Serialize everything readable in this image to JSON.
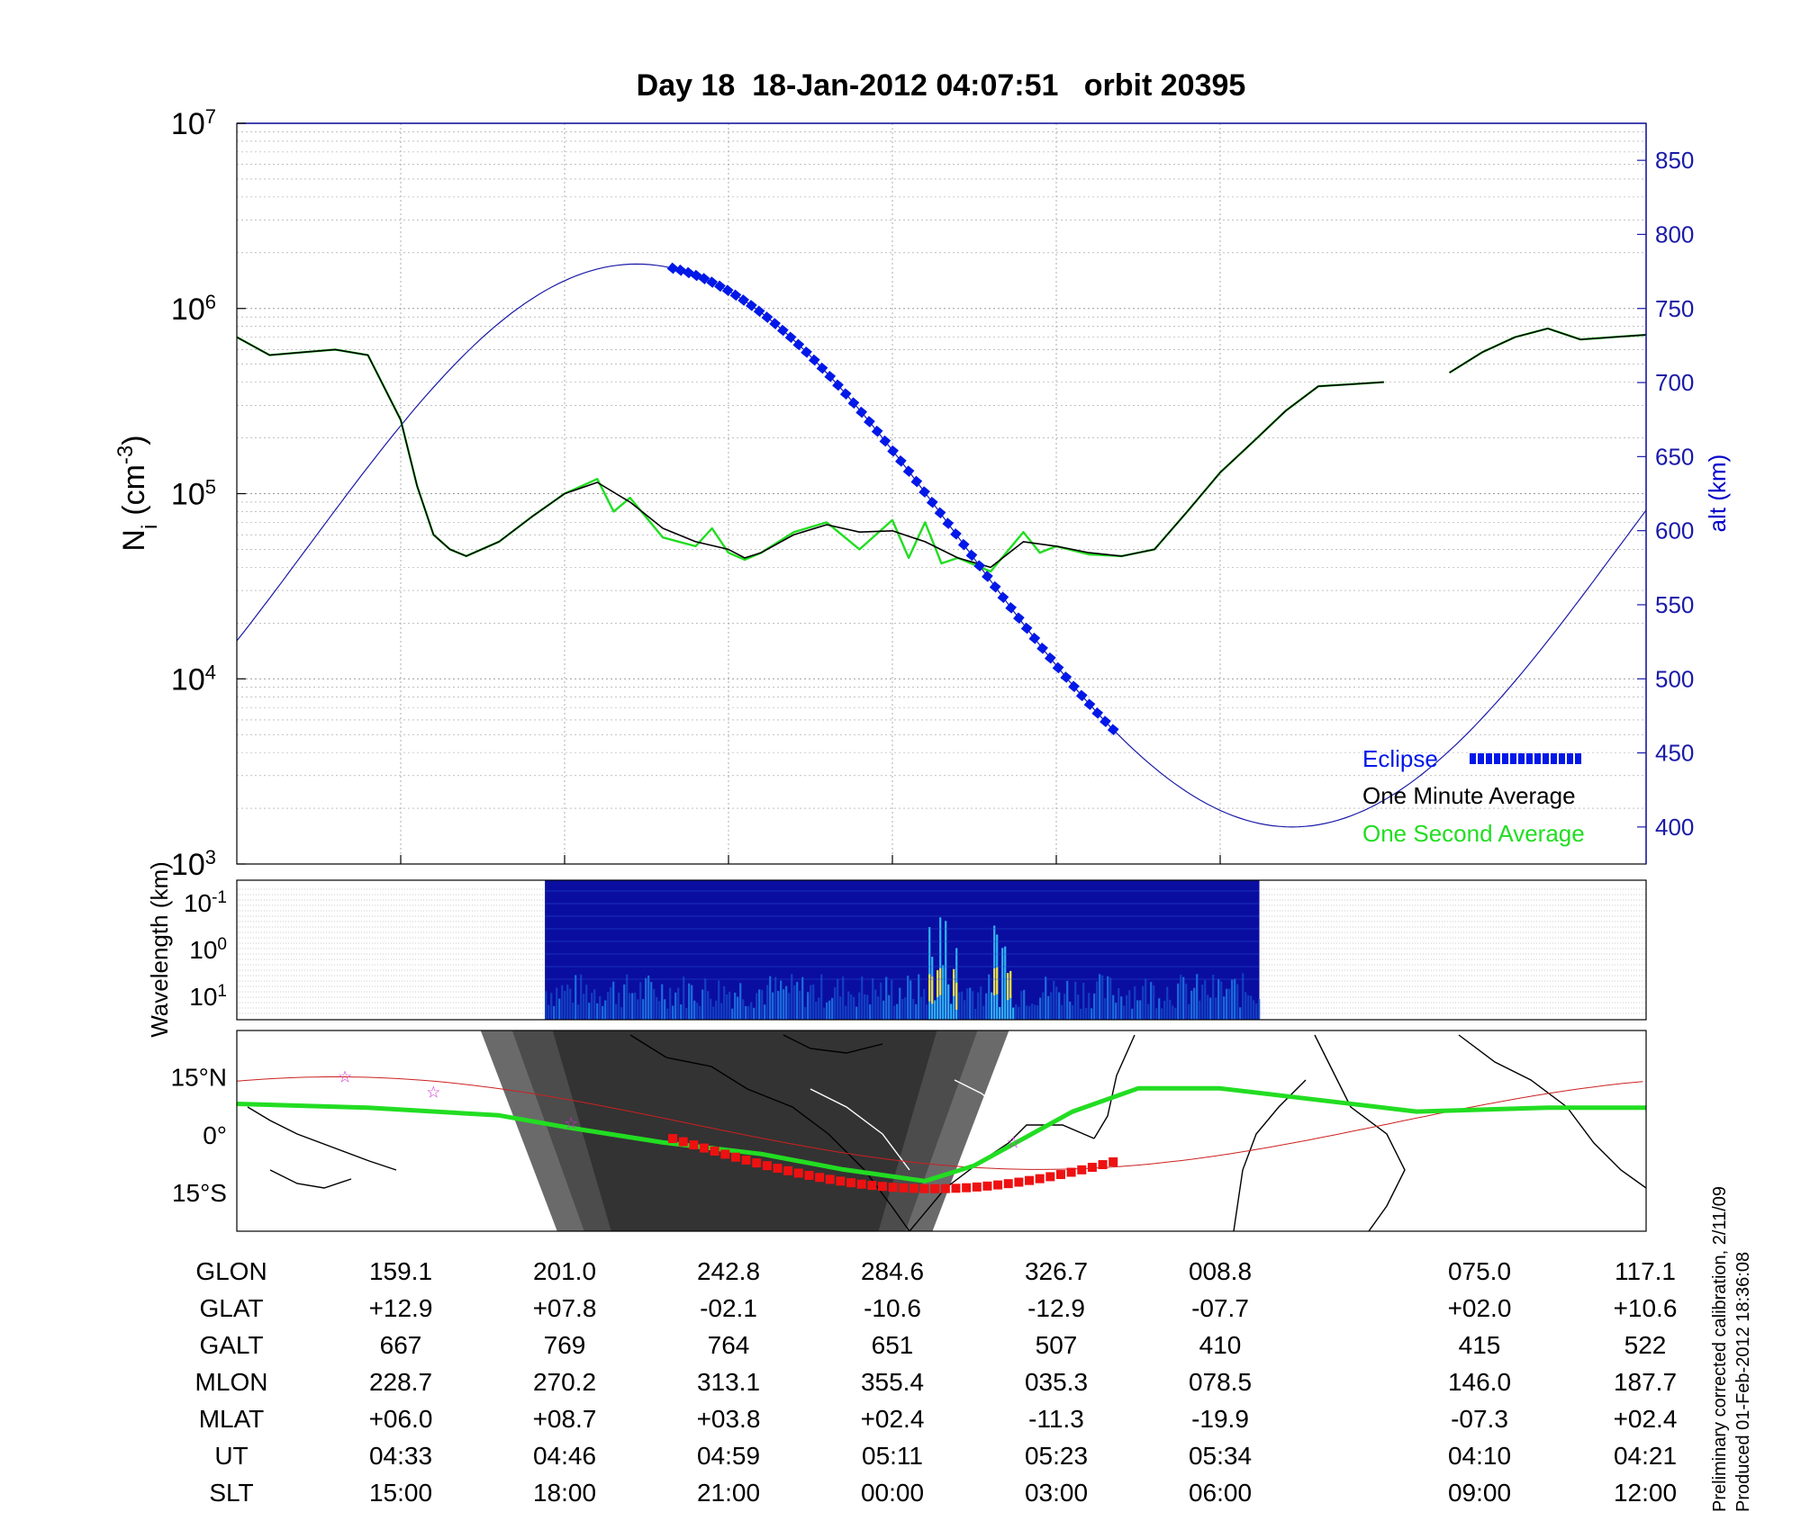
{
  "header": {
    "title": "Day 18  18-Jan-2012 04:07:51   orbit 20395"
  },
  "colors": {
    "one_minute": "#000000",
    "one_second": "#22dd22",
    "altitude": "#1a1aa8",
    "eclipse": "#0018e8",
    "track": "#22dd22",
    "footprint": "#ee1111",
    "grid": "#9a9a9a"
  },
  "chart_data": [
    {
      "type": "line",
      "panel": "ion density",
      "title": "Day 18  18-Jan-2012 04:07:51   orbit 20395",
      "ylabel": "N_i (cm^-3)",
      "ylabel_display": "N",
      "ylabel_sub": "i",
      "ylabel_unit": "(cm",
      "ylabel_exp": "-3",
      "ylabel_close": ")",
      "yscale": "log",
      "ylim": [
        1000,
        10000000
      ],
      "ytick_exponents": [
        "3",
        "4",
        "5",
        "6",
        "7"
      ],
      "ytick_base": "10",
      "y2label": "alt (km)",
      "y2lim": [
        375,
        875
      ],
      "y2ticks": [
        400,
        450,
        500,
        550,
        600,
        650,
        700,
        750,
        800,
        850
      ],
      "grid": true,
      "legend": {
        "placement": "bottom-right",
        "entries": [
          "Eclipse",
          "One Minute Average",
          "One Second Average"
        ]
      },
      "series": [
        {
          "name": "One Minute Average",
          "axis": "left",
          "x": [
            0,
            10,
            20,
            30,
            40,
            50,
            55,
            60,
            65,
            70,
            80,
            90,
            100,
            110,
            120,
            130,
            140,
            150,
            155,
            160,
            170,
            180,
            190,
            200,
            210,
            220,
            230,
            240,
            250,
            260,
            270,
            280,
            290,
            300,
            310,
            320,
            330,
            340,
            350,
            null,
            370,
            380,
            390,
            400,
            410,
            420,
            430
          ],
          "y": [
            700000,
            560000,
            580000,
            600000,
            560000,
            250000,
            110000,
            60000,
            50000,
            46000,
            55000,
            75000,
            100000,
            115000,
            90000,
            65000,
            55000,
            50000,
            45000,
            48000,
            60000,
            68000,
            62000,
            63000,
            55000,
            45000,
            40000,
            55000,
            52000,
            48000,
            46000,
            50000,
            80000,
            130000,
            190000,
            280000,
            380000,
            390000,
            400000,
            null,
            450000,
            580000,
            700000,
            780000,
            680000,
            700000,
            720000
          ]
        },
        {
          "name": "One Second Average",
          "axis": "left",
          "x": [
            0,
            10,
            20,
            30,
            40,
            50,
            55,
            60,
            65,
            70,
            80,
            90,
            100,
            110,
            115,
            120,
            130,
            140,
            145,
            150,
            155,
            160,
            170,
            180,
            190,
            200,
            205,
            210,
            215,
            220,
            230,
            240,
            245,
            250,
            260,
            270,
            280,
            290,
            300,
            310,
            320,
            330,
            340,
            350,
            null,
            370,
            380,
            390,
            400,
            410,
            420,
            430
          ],
          "y": [
            700000,
            560000,
            580000,
            600000,
            560000,
            250000,
            110000,
            60000,
            50000,
            46000,
            55000,
            75000,
            100000,
            120000,
            80000,
            95000,
            58000,
            52000,
            65000,
            48000,
            44000,
            48000,
            62000,
            70000,
            50000,
            72000,
            45000,
            70000,
            42000,
            45000,
            38000,
            62000,
            48000,
            52000,
            47000,
            46000,
            50000,
            80000,
            130000,
            190000,
            280000,
            380000,
            390000,
            400000,
            null,
            450000,
            580000,
            700000,
            780000,
            680000,
            700000,
            720000
          ]
        },
        {
          "name": "alt (km)",
          "axis": "right",
          "x_start": 0,
          "x_end": 430,
          "sinusoid": {
            "mean": 590,
            "amplitude": 190,
            "peak_at": 122,
            "period": 400
          }
        }
      ],
      "eclipse": {
        "x_start": 133,
        "x_end": 268
      },
      "xtick_slt": [
        "15:00",
        "18:00",
        "21:00",
        "00:00",
        "03:00",
        "06:00",
        "09:00",
        "12:00"
      ]
    },
    {
      "type": "heatmap",
      "panel": "spectrogram",
      "ylabel": "Wavelength (km)",
      "ytick_base": "10",
      "ytick_exponents": [
        "-1",
        "0",
        "1"
      ],
      "data_x_range": [
        94,
        312
      ],
      "colormap": "jet"
    },
    {
      "type": "map",
      "panel": "ground track",
      "ytick_labels": [
        "15°N",
        "0°",
        "15°S"
      ],
      "ylim": [
        -25,
        27
      ],
      "terminator": {
        "night_center_x": 155,
        "half_width": 60
      }
    }
  ],
  "ephemeris": {
    "rows": [
      {
        "label": "GLON",
        "values": [
          "159.1",
          "201.0",
          "242.8",
          "284.6",
          "326.7",
          "008.8",
          "075.0",
          "117.1"
        ]
      },
      {
        "label": "GLAT",
        "values": [
          "+12.9",
          "+07.8",
          "-02.1",
          "-10.6",
          "-12.9",
          "-07.7",
          "+02.0",
          "+10.6"
        ]
      },
      {
        "label": "GALT",
        "values": [
          "667",
          "769",
          "764",
          "651",
          "507",
          "410",
          "415",
          "522"
        ]
      },
      {
        "label": "MLON",
        "values": [
          "228.7",
          "270.2",
          "313.1",
          "355.4",
          "035.3",
          "078.5",
          "146.0",
          "187.7"
        ]
      },
      {
        "label": "MLAT",
        "values": [
          "+06.0",
          "+08.7",
          "+03.8",
          "+02.4",
          "-11.3",
          "-19.9",
          "-07.3",
          "+02.4"
        ]
      },
      {
        "label": "UT",
        "values": [
          "04:33",
          "04:46",
          "04:59",
          "05:11",
          "05:23",
          "05:34",
          "04:10",
          "04:21"
        ]
      },
      {
        "label": "SLT",
        "values": [
          "15:00",
          "18:00",
          "21:00",
          "00:00",
          "03:00",
          "06:00",
          "09:00",
          "12:00"
        ]
      }
    ]
  },
  "footer": {
    "calibration_note": "Preliminary corrected calibration, 2/11/09",
    "produced_note": "Produced 01-Feb-2012 18:36:08"
  }
}
